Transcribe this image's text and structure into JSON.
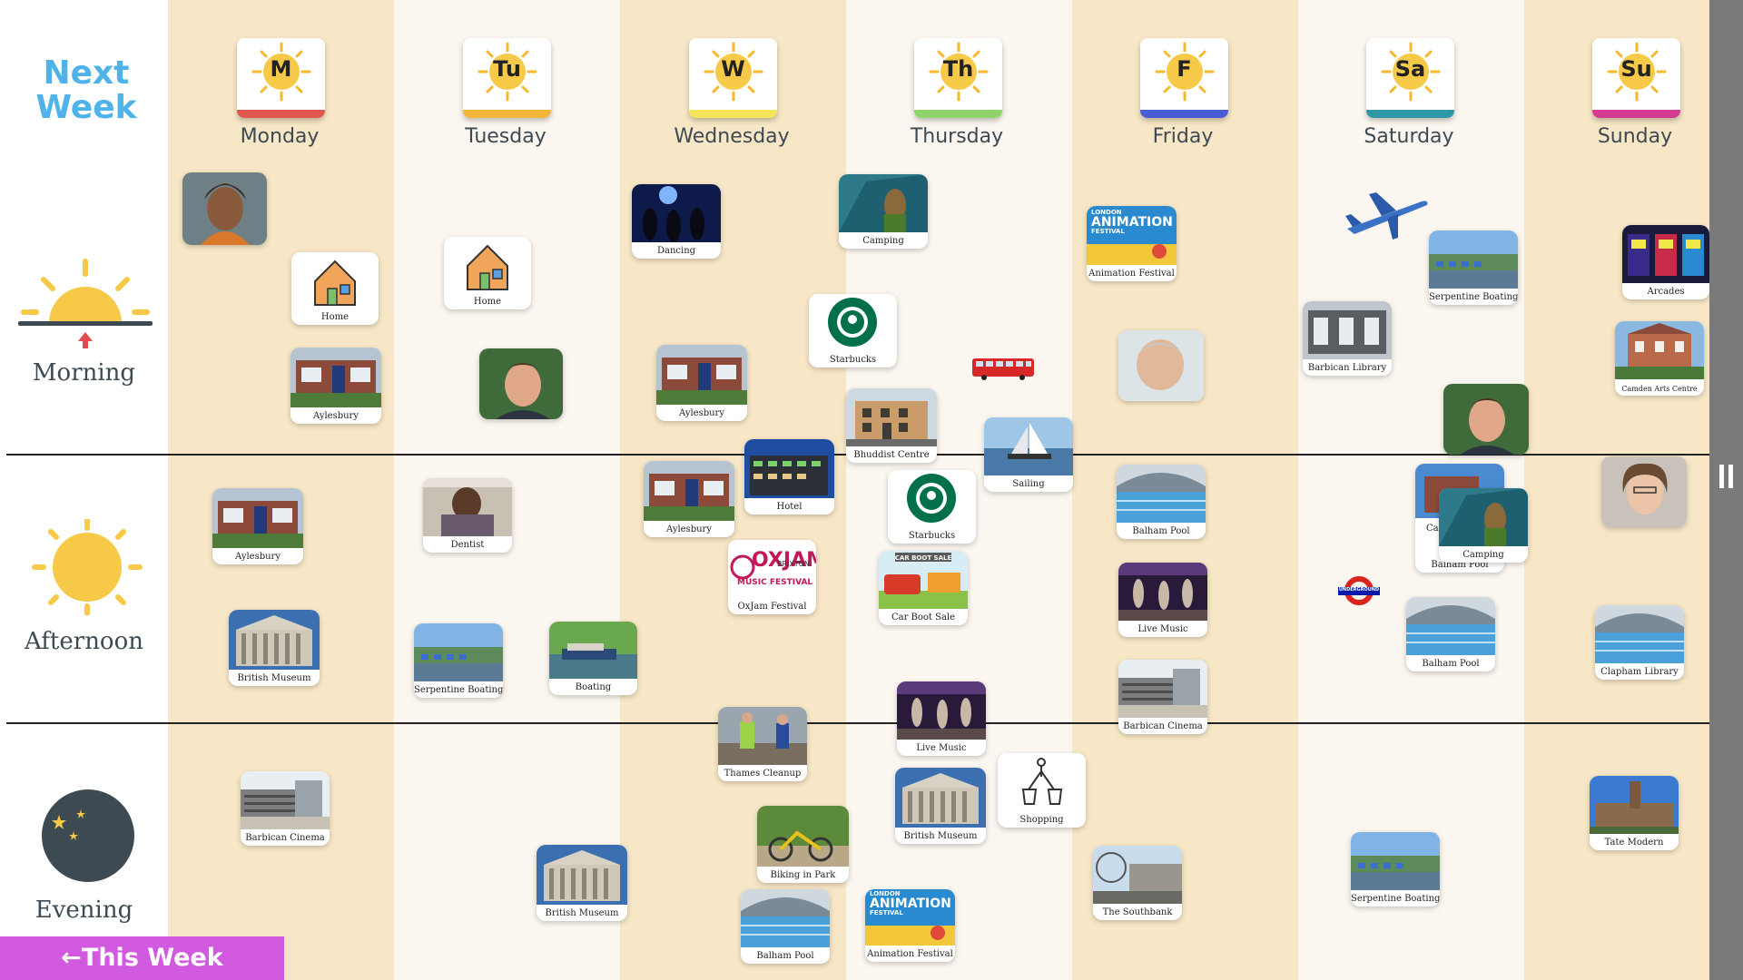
{
  "header": {
    "next_week_line1": "Next",
    "next_week_line2": "Week"
  },
  "periods": {
    "morning": "Morning",
    "afternoon": "Afternoon",
    "evening": "Evening"
  },
  "days": [
    {
      "abbr": "M",
      "name": "Monday",
      "strip_color": "#e2574c"
    },
    {
      "abbr": "Tu",
      "name": "Tuesday",
      "strip_color": "#f3b63a"
    },
    {
      "abbr": "W",
      "name": "Wednesday",
      "strip_color": "#f5e45a"
    },
    {
      "abbr": "Th",
      "name": "Thursday",
      "strip_color": "#8fd46a"
    },
    {
      "abbr": "F",
      "name": "Friday",
      "strip_color": "#4a5bd6"
    },
    {
      "abbr": "Sa",
      "name": "Saturday",
      "strip_color": "#2f97a6"
    },
    {
      "abbr": "Su",
      "name": "Sunday",
      "strip_color": "#d53a93"
    }
  ],
  "nav": {
    "this_week": "This Week"
  },
  "activities": {
    "home": "Home",
    "aylesbury": "Aylesbury",
    "dancing": "Dancing",
    "camping": "Camping",
    "starbucks": "Starbucks",
    "bhuddist_centre": "Bhuddist Centre",
    "animation_festival": "Animation Festival",
    "serpentine_boating": "Serpentine Boating",
    "barbican_library": "Barbican Library",
    "arcades": "Arcades",
    "camden_arts_centre": "Camden Arts Centre",
    "dentist": "Dentist",
    "hotel": "Hotel",
    "sailing": "Sailing",
    "balham_pool": "Balham Pool",
    "oxjam_festival": "OxJam Festival",
    "car_boot_sale": "Car Boot Sale",
    "live_music": "Live Music",
    "clapham_library": "Clapham Library",
    "british_museum": "British Museum",
    "boating": "Boating",
    "barbican_cinema": "Barbican Cinema",
    "thames_cleanup": "Thames Cleanup",
    "shopping": "Shopping",
    "biking_in_park": "Biking in Park",
    "the_southbank": "The Southbank",
    "tate_modern": "Tate Modern"
  },
  "image_text": {
    "animation_line1": "LONDON",
    "animation_line2": "ANIMATION",
    "animation_line3": "FESTIVAL",
    "oxjam_line1": "OXJAM",
    "oxjam_line2": "BRIXTON",
    "oxjam_line3": "MUSIC FESTIVAL",
    "car_boot_banner": "CAR BOOT SALE",
    "underground": "UNDERGROUND",
    "camping_partial": "Cam"
  },
  "colors": {
    "odd_column": "#f7e7c6",
    "even_column": "#fbf6ef",
    "accent_blue": "#4fb3ea",
    "this_week_button": "#d25ae0",
    "sun": "#f7c948"
  }
}
